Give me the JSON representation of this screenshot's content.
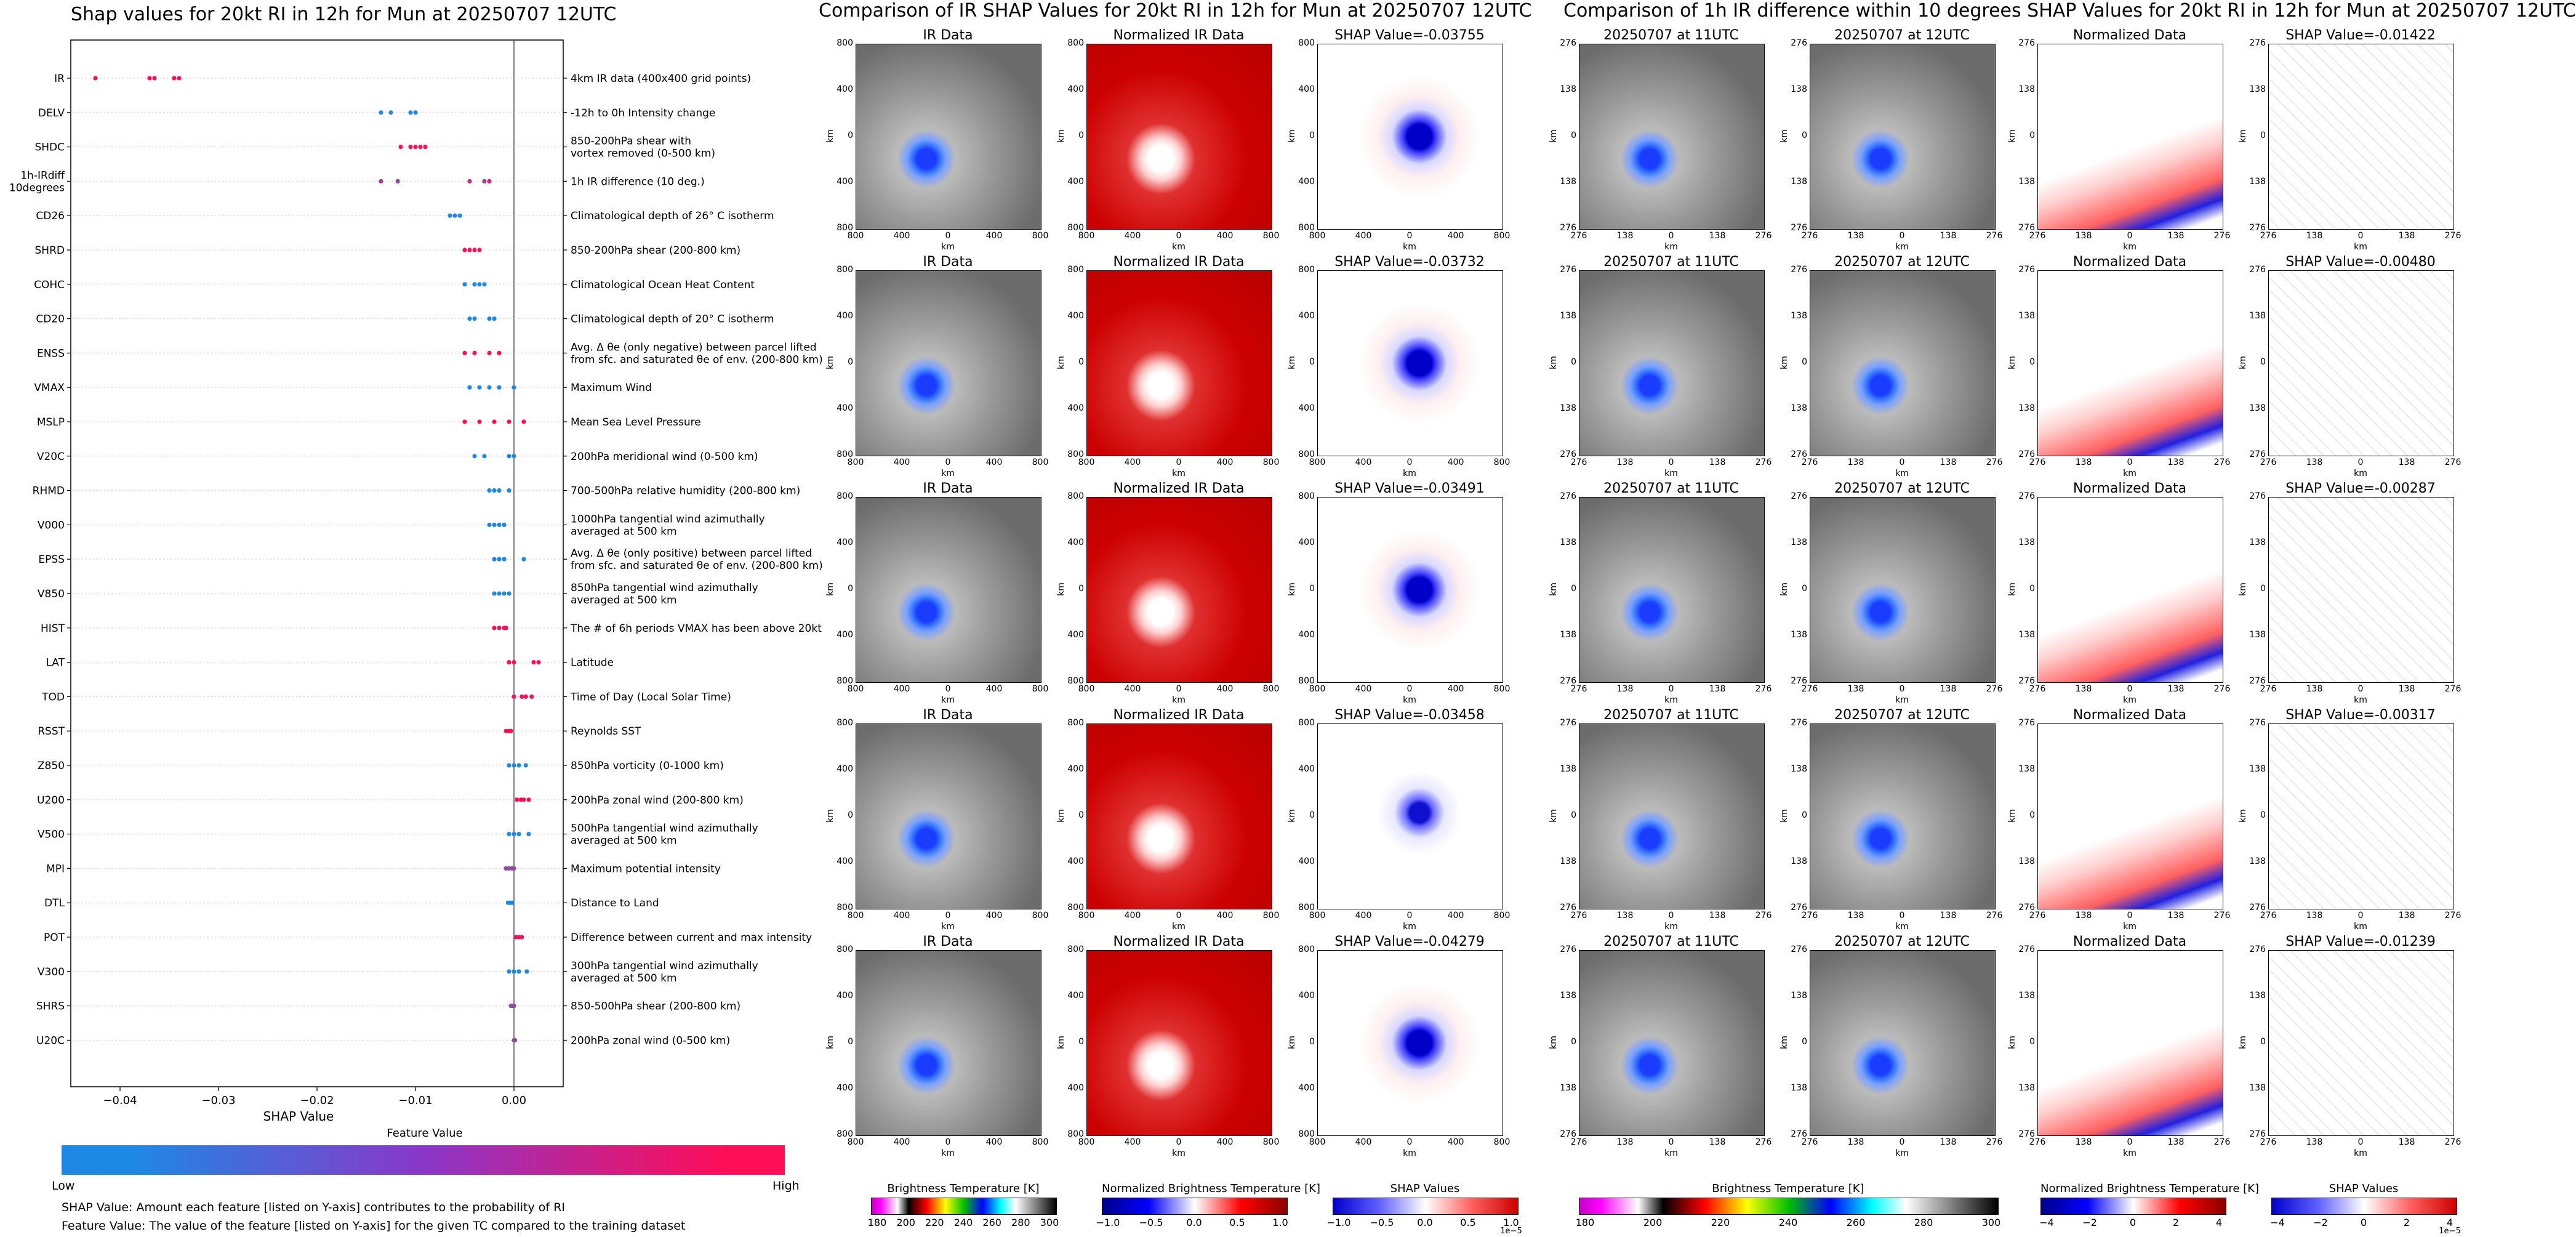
{
  "titles": {
    "left": "Shap values for 20kt RI in 12h for Mun at 20250707 12UTC",
    "middle": "Comparison of IR SHAP Values for 20kt RI in 12h for Mun at 20250707 12UTC",
    "right": "Comparison of 1h IR difference within 10 degrees SHAP Values for 20kt RI in 12h for Mun at 20250707 12UTC"
  },
  "chart_data": [
    {
      "type": "scatter",
      "title": "Shap values for 20kt RI in 12h for Mun at 20250707 12UTC",
      "xlabel": "SHAP Value",
      "xlim": [
        -0.045,
        0.005
      ],
      "xticks": [
        "−0.04",
        "−0.03",
        "−0.02",
        "−0.01",
        "0.00"
      ],
      "xtick_values": [
        -0.04,
        -0.03,
        -0.02,
        -0.01,
        0.0
      ],
      "colors": {
        "low": "#1e88e5",
        "high": "#ff0d57"
      },
      "colorbar": {
        "title": "Feature Value",
        "low": "Low",
        "high": "High"
      },
      "features": [
        {
          "code": "IR",
          "desc": "4km IR data (400x400 grid points)",
          "points": [
            [
              -0.0425,
              1
            ],
            [
              -0.037,
              1
            ],
            [
              -0.0365,
              1
            ],
            [
              -0.0345,
              1
            ],
            [
              -0.034,
              1
            ]
          ]
        },
        {
          "code": "DELV",
          "desc": "-12h to 0h Intensity change",
          "points": [
            [
              -0.0135,
              0
            ],
            [
              -0.0125,
              0
            ],
            [
              -0.0105,
              0
            ],
            [
              -0.01,
              0
            ]
          ]
        },
        {
          "code": "SHDC",
          "desc": "850-200hPa shear with\nvortex removed (0-500 km)",
          "points": [
            [
              -0.0115,
              1
            ],
            [
              -0.0105,
              1
            ],
            [
              -0.01,
              1
            ],
            [
              -0.0095,
              1
            ],
            [
              -0.009,
              1
            ]
          ]
        },
        {
          "code": "1h-IRdiff\n10degrees",
          "desc": "1h IR difference (10 deg.)",
          "points": [
            [
              -0.0135,
              0.6
            ],
            [
              -0.0118,
              0.5
            ],
            [
              -0.0045,
              0.7
            ],
            [
              -0.003,
              0.6
            ],
            [
              -0.0025,
              0.8
            ]
          ]
        },
        {
          "code": "CD26",
          "desc": "Climatological depth of 26° C isotherm",
          "points": [
            [
              -0.0065,
              0
            ],
            [
              -0.006,
              0
            ],
            [
              -0.0055,
              0
            ]
          ]
        },
        {
          "code": "SHRD",
          "desc": "850-200hPa shear (200-800 km)",
          "points": [
            [
              -0.005,
              1
            ],
            [
              -0.0045,
              1
            ],
            [
              -0.004,
              1
            ],
            [
              -0.0035,
              1
            ]
          ]
        },
        {
          "code": "COHC",
          "desc": "Climatological Ocean Heat Content",
          "points": [
            [
              -0.005,
              0
            ],
            [
              -0.004,
              0
            ],
            [
              -0.0035,
              0
            ],
            [
              -0.003,
              0
            ]
          ]
        },
        {
          "code": "CD20",
          "desc": "Climatological depth of 20° C isotherm",
          "points": [
            [
              -0.0045,
              0
            ],
            [
              -0.004,
              0
            ],
            [
              -0.0025,
              0
            ],
            [
              -0.002,
              0
            ]
          ]
        },
        {
          "code": "ENSS",
          "desc": "Avg. Δ θe (only negative) between parcel lifted\nfrom sfc. and saturated θe of env. (200-800 km)",
          "points": [
            [
              -0.005,
              1
            ],
            [
              -0.004,
              1
            ],
            [
              -0.0025,
              1
            ],
            [
              -0.0015,
              1
            ]
          ]
        },
        {
          "code": "VMAX",
          "desc": "Maximum Wind",
          "points": [
            [
              -0.0045,
              0
            ],
            [
              -0.0035,
              0
            ],
            [
              -0.0025,
              0
            ],
            [
              -0.0015,
              0
            ],
            [
              0.0,
              0
            ]
          ]
        },
        {
          "code": "MSLP",
          "desc": "Mean Sea Level Pressure",
          "points": [
            [
              -0.005,
              1
            ],
            [
              -0.0035,
              1
            ],
            [
              -0.002,
              1
            ],
            [
              -0.0005,
              1
            ],
            [
              0.001,
              1
            ]
          ]
        },
        {
          "code": "V20C",
          "desc": "200hPa meridional wind (0-500 km)",
          "points": [
            [
              -0.004,
              0
            ],
            [
              -0.003,
              0
            ],
            [
              -0.0005,
              0
            ],
            [
              0.0,
              0
            ]
          ]
        },
        {
          "code": "RHMD",
          "desc": "700-500hPa relative humidity (200-800 km)",
          "points": [
            [
              -0.0025,
              0
            ],
            [
              -0.002,
              0
            ],
            [
              -0.0015,
              0
            ],
            [
              -0.0005,
              0
            ]
          ]
        },
        {
          "code": "V000",
          "desc": "1000hPa tangential wind azimuthally\naveraged at 500 km",
          "points": [
            [
              -0.0025,
              0
            ],
            [
              -0.002,
              0
            ],
            [
              -0.0015,
              0
            ],
            [
              -0.001,
              0
            ]
          ]
        },
        {
          "code": "EPSS",
          "desc": "Avg. Δ θe (only positive) between parcel lifted\nfrom sfc. and saturated θe of env. (200-800 km)",
          "points": [
            [
              -0.002,
              0
            ],
            [
              -0.0015,
              0
            ],
            [
              -0.001,
              0
            ],
            [
              0.001,
              0
            ]
          ]
        },
        {
          "code": "V850",
          "desc": "850hPa tangential wind azimuthally\naveraged at 500 km",
          "points": [
            [
              -0.002,
              0
            ],
            [
              -0.0015,
              0
            ],
            [
              -0.001,
              0
            ],
            [
              -0.0005,
              0
            ]
          ]
        },
        {
          "code": "HIST",
          "desc": "The # of 6h periods VMAX has been above 20kt",
          "points": [
            [
              -0.002,
              1
            ],
            [
              -0.0015,
              1
            ],
            [
              -0.001,
              1
            ],
            [
              -0.0008,
              1
            ]
          ]
        },
        {
          "code": "LAT",
          "desc": "Latitude",
          "points": [
            [
              -0.0005,
              1
            ],
            [
              0.0,
              1
            ],
            [
              0.002,
              1
            ],
            [
              0.0025,
              1
            ]
          ]
        },
        {
          "code": "TOD",
          "desc": "Time of Day (Local Solar Time)",
          "points": [
            [
              0.0,
              1
            ],
            [
              0.0008,
              1
            ],
            [
              0.0012,
              1
            ],
            [
              0.0018,
              1
            ]
          ]
        },
        {
          "code": "RSST",
          "desc": "Reynolds SST",
          "points": [
            [
              -0.0008,
              1
            ],
            [
              -0.0005,
              1
            ],
            [
              -0.0003,
              1
            ]
          ]
        },
        {
          "code": "Z850",
          "desc": "850hPa vorticity (0-1000 km)",
          "points": [
            [
              -0.0005,
              0
            ],
            [
              0.0,
              0
            ],
            [
              0.0005,
              0
            ],
            [
              0.0012,
              0
            ]
          ]
        },
        {
          "code": "U200",
          "desc": "200hPa zonal wind (200-800 km)",
          "points": [
            [
              0.0003,
              1
            ],
            [
              0.0007,
              1
            ],
            [
              0.001,
              1
            ],
            [
              0.0015,
              1
            ]
          ]
        },
        {
          "code": "V500",
          "desc": "500hPa tangential wind azimuthally\naveraged at 500 km",
          "points": [
            [
              -0.0005,
              0
            ],
            [
              0.0,
              0
            ],
            [
              0.0005,
              0
            ],
            [
              0.0015,
              0
            ]
          ]
        },
        {
          "code": "MPI",
          "desc": "Maximum potential intensity",
          "points": [
            [
              -0.0008,
              0.5
            ],
            [
              -0.0005,
              0.5
            ],
            [
              -0.0002,
              0.5
            ],
            [
              0.0,
              0.5
            ]
          ]
        },
        {
          "code": "DTL",
          "desc": "Distance to Land",
          "points": [
            [
              -0.0006,
              0
            ],
            [
              -0.0004,
              0
            ],
            [
              -0.0002,
              0
            ]
          ]
        },
        {
          "code": "POT",
          "desc": "Difference between current and max intensity",
          "points": [
            [
              0.0002,
              1
            ],
            [
              0.0005,
              1
            ],
            [
              0.0008,
              1
            ]
          ]
        },
        {
          "code": "V300",
          "desc": "300hPa tangential wind azimuthally\naveraged at 500 km",
          "points": [
            [
              -0.0005,
              0
            ],
            [
              0.0,
              0
            ],
            [
              0.0005,
              0
            ],
            [
              0.0013,
              0
            ]
          ]
        },
        {
          "code": "SHRS",
          "desc": "850-500hPa shear (200-800 km)",
          "points": [
            [
              -0.0003,
              0.5
            ],
            [
              -0.0001,
              0.5
            ],
            [
              0.0,
              0.5
            ]
          ]
        },
        {
          "code": "U20C",
          "desc": "200hPa zonal wind (0-500 km)",
          "points": [
            [
              0.0,
              0.5
            ],
            [
              0.0001,
              0.5
            ]
          ]
        }
      ]
    },
    {
      "type": "heatmap",
      "title": "Comparison of IR SHAP Values for 20kt RI in 12h for Mun at 20250707 12UTC",
      "rows": [
        {
          "titles": [
            "IR Data",
            "Normalized IR Data",
            "SHAP Value=-0.03755"
          ]
        },
        {
          "titles": [
            "IR Data",
            "Normalized IR Data",
            "SHAP Value=-0.03732"
          ]
        },
        {
          "titles": [
            "IR Data",
            "Normalized IR Data",
            "SHAP Value=-0.03491"
          ]
        },
        {
          "titles": [
            "IR Data",
            "Normalized IR Data",
            "SHAP Value=-0.03458"
          ]
        },
        {
          "titles": [
            "IR Data",
            "Normalized IR Data",
            "SHAP Value=-0.04279"
          ]
        }
      ],
      "axis_ticks": [
        "800",
        "400",
        "0",
        "400",
        "800"
      ],
      "axis_unit": "km",
      "colorbars": [
        {
          "label": "Brightness Temperature [K]",
          "ticks": [
            "180",
            "200",
            "220",
            "240",
            "260",
            "280",
            "300"
          ]
        },
        {
          "label": "Normalized Brightness Temperature [K]",
          "ticks": [
            "−1.0",
            "−0.5",
            "0.0",
            "0.5",
            "1.0"
          ]
        },
        {
          "label": "SHAP Values",
          "ticks": [
            "−1.0",
            "−0.5",
            "0.0",
            "0.5",
            "1.0"
          ],
          "offset": "1e−5"
        }
      ]
    },
    {
      "type": "heatmap",
      "title": "Comparison of 1h IR difference within 10 degrees SHAP Values for 20kt RI in 12h for Mun at 20250707 12UTC",
      "rows": [
        {
          "titles": [
            "20250707 at 11UTC",
            "20250707 at 12UTC",
            "Normalized Data",
            "SHAP Value=-0.01422"
          ]
        },
        {
          "titles": [
            "20250707 at 11UTC",
            "20250707 at 12UTC",
            "Normalized Data",
            "SHAP Value=-0.00480"
          ]
        },
        {
          "titles": [
            "20250707 at 11UTC",
            "20250707 at 12UTC",
            "Normalized Data",
            "SHAP Value=-0.00287"
          ]
        },
        {
          "titles": [
            "20250707 at 11UTC",
            "20250707 at 12UTC",
            "Normalized Data",
            "SHAP Value=-0.00317"
          ]
        },
        {
          "titles": [
            "20250707 at 11UTC",
            "20250707 at 12UTC",
            "Normalized Data",
            "SHAP Value=-0.01239"
          ]
        }
      ],
      "axis_ticks": [
        "276",
        "138",
        "0",
        "138",
        "276"
      ],
      "axis_unit": "km",
      "colorbars": [
        {
          "label": "Brightness Temperature [K]",
          "ticks": [
            "180",
            "200",
            "220",
            "240",
            "260",
            "280",
            "300"
          ]
        },
        {
          "label": "Normalized Brightness Temperature [K]",
          "ticks": [
            "−4",
            "−2",
            "0",
            "2",
            "4"
          ]
        },
        {
          "label": "SHAP Values",
          "ticks": [
            "−4",
            "−2",
            "0",
            "2",
            "4"
          ],
          "offset": "1e−5"
        }
      ]
    }
  ],
  "notes": {
    "line1": "SHAP Value: Amount each feature [listed on Y-axis] contributes to the probability of RI",
    "line2": "Feature Value: The value of the feature [listed on Y-axis] for the given TC compared to the training dataset"
  }
}
